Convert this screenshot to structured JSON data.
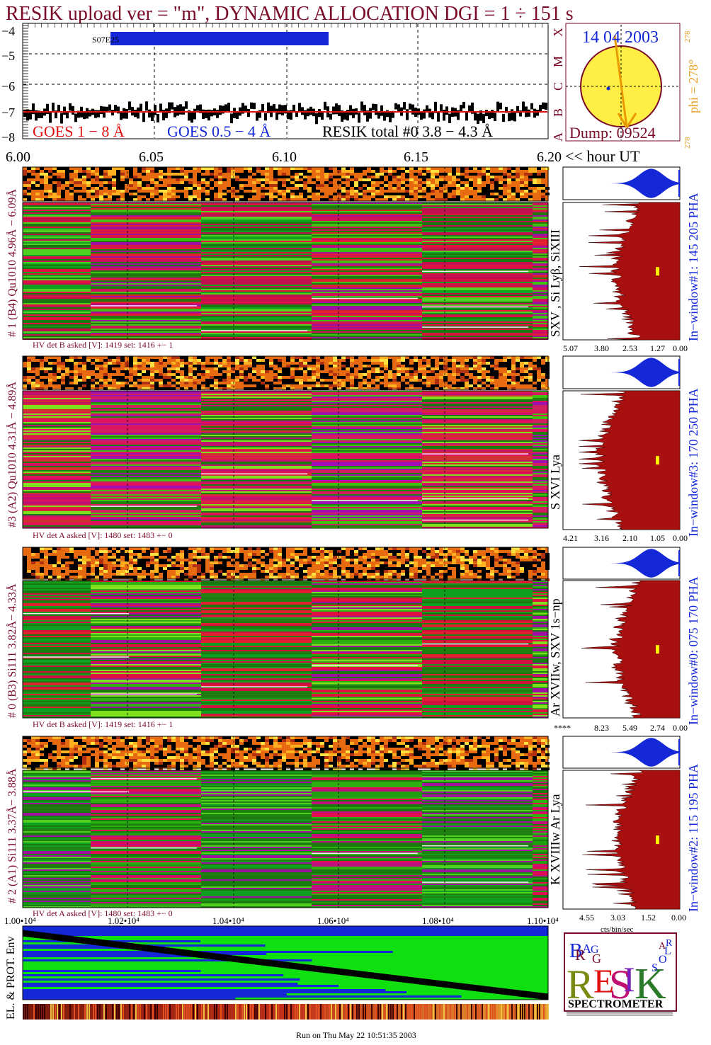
{
  "header": {
    "title": "RESIK upload ver = \"m\", DYNAMIC ALLOCATION  DGI =   1 ÷ 151 s",
    "title_color": "#7a0a28"
  },
  "goes": {
    "yticks": [
      "−4",
      "−5",
      "−6",
      "−7",
      "−8"
    ],
    "xticks": [
      "6.00",
      "6.05",
      "6.10",
      "6.15",
      "6.20"
    ],
    "xunit": "<< hour UT",
    "flag_label": "S07E25",
    "legend": {
      "goes18": "GOES 1 − 8 Å",
      "goes054": "GOES 0.5 − 4 Å",
      "resik": "RESIK total #0  3.8 − 4.3 Å"
    },
    "colors": {
      "goes18": "#e01010",
      "goes054": "#1428d8",
      "resik": "#000000"
    },
    "classes": [
      "X",
      "M",
      "C",
      "B",
      "A"
    ]
  },
  "sun": {
    "date": "14 04 2003",
    "dump": "Dump: 09524",
    "phi": "phi = 278°",
    "phi_sup": "278",
    "phi_small": "278"
  },
  "panels": [
    {
      "side_label": "# 1 (B4) Qu1010 4.96Å − 6.09Å",
      "lines_label": "SXV , Si Lyβ, SiXIII",
      "window_label": "In−window#1:  145 205 PHA",
      "hv_label": "HV det B asked [V]:  1419 set:  1416 +−     1",
      "ticks": [
        "5.07",
        "3.80",
        "2.53",
        "1.27",
        "0.00"
      ]
    },
    {
      "side_label": "#3 (A2) Qu1010  4.31Å − 4.89Å",
      "lines_label": "S XVI Lya",
      "window_label": "In−window#3:  170 250 PHA",
      "hv_label": "HV det A asked [V]:  1480 set:  1483 +−     0",
      "ticks": [
        "4.21",
        "3.16",
        "2.10",
        "1.05",
        "0.00"
      ]
    },
    {
      "side_label": "# 0 (B3) Si111  3.82Å− 4.33Å",
      "lines_label": "Ar XVIIw,  SXV 1s−np",
      "window_label": "In−window#0:  075 170 PHA",
      "hv_label": "HV det B asked [V]:  1419 set:  1416 +−     1",
      "ticks": [
        "****",
        "8.23",
        "5.49",
        "2.74",
        "0.00"
      ]
    },
    {
      "side_label": "# 2 (A1) Si111  3.37Å− 3.88Å",
      "lines_label": "K XVIIIw  Ar Lya",
      "window_label": "In−window#2:  115 195 PHA",
      "hv_label": "HV det A asked [V]:  1480 set:  1483 +−     0",
      "ticks": [
        "4.55",
        "3.03",
        "1.52",
        "0.00"
      ]
    }
  ],
  "env": {
    "ylabel": "EL. & PROT. Env",
    "xticks": [
      "1.00•10⁴",
      "1.02•10⁴",
      "1.04•10⁴",
      "1.06•10⁴",
      "1.08•10⁴",
      "1.10•10⁴"
    ],
    "unit": "cts/bin/sec"
  },
  "logo": {
    "letters": [
      "B",
      "R",
      "A",
      "G",
      "G",
      "R",
      "E",
      "S",
      "I",
      "K",
      "S",
      "O",
      "L",
      "A",
      "R"
    ],
    "caption": "SPECTROMETER"
  },
  "footer": "Run on Thu May 22 10:51:35 2003",
  "chart_data": [
    {
      "type": "line",
      "title": "",
      "xlabel": "<< hour UT",
      "ylabel": "",
      "x_range": [
        6.0,
        6.2
      ],
      "ylim": [
        -8,
        -3.8
      ],
      "series": [
        {
          "name": "GOES 1 − 8 Å",
          "approx_level": -6.9
        },
        {
          "name": "GOES 0.5 − 4 Å",
          "approx_level": -7.0
        },
        {
          "name": "RESIK total #0  3.8 − 4.3 Å",
          "approx_level": -6.9
        }
      ]
    },
    {
      "type": "heatmap",
      "title": "",
      "xlabel": "",
      "x_range": [
        10000,
        11000
      ],
      "note": "spectral-vs-time colour maps for detectors #1, #3, #0, #2"
    }
  ]
}
